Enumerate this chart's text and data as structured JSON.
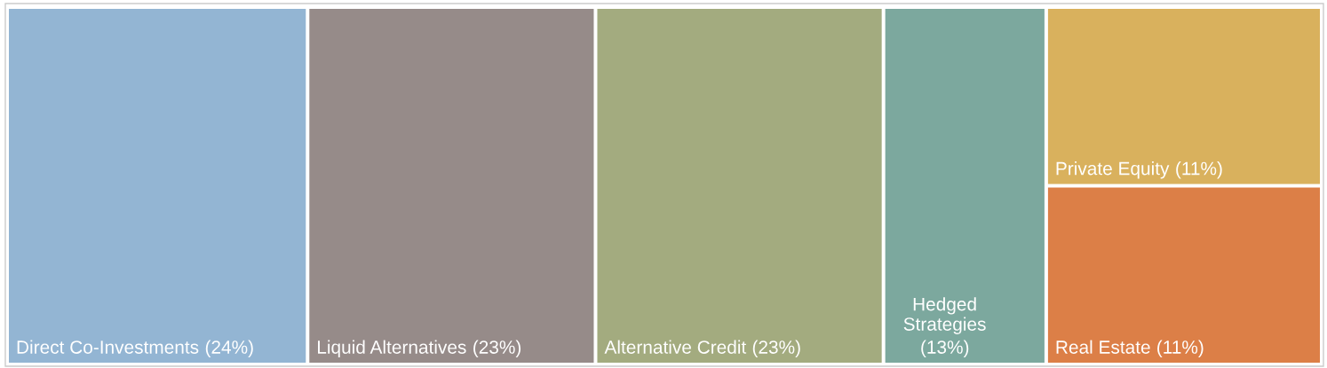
{
  "chart_data": {
    "type": "other",
    "categories": [
      "Direct Co-Investments",
      "Liquid Alternatives",
      "Alternative Credit",
      "Hedged Strategies",
      "Private Equity",
      "Real Estate"
    ],
    "values": [
      24,
      23,
      23,
      13,
      11,
      11
    ],
    "value_labels": [
      "(24%)",
      "(23%)",
      "(23%)",
      "(13%)",
      "(11%)",
      "(11%)"
    ],
    "colors": [
      "#93b5d3",
      "#968b89",
      "#a3ab7f",
      "#7ca89e",
      "#d9b15d",
      "#dc7f47"
    ]
  }
}
